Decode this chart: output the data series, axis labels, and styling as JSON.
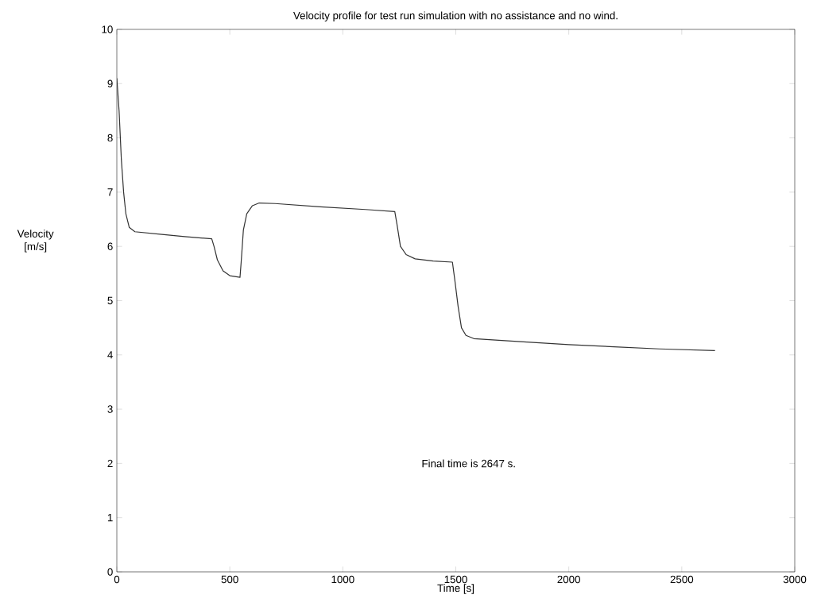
{
  "chart_data": {
    "type": "line",
    "title": "Velocity profile for test run simulation with no assistance and no wind.",
    "xlabel": "Time [s]",
    "ylabel": "Velocity [m/s]",
    "annotations": [
      "Final time is 2647 s."
    ],
    "series": [
      {
        "color": "#333333",
        "x": [
          0,
          10,
          20,
          30,
          40,
          55,
          80,
          200,
          300,
          420,
          430,
          445,
          470,
          500,
          545,
          550,
          560,
          575,
          600,
          630,
          700,
          900,
          1100,
          1230,
          1240,
          1255,
          1280,
          1320,
          1400,
          1485,
          1495,
          1510,
          1525,
          1545,
          1580,
          1800,
          2000,
          2200,
          2400,
          2647
        ],
        "values": [
          9.1,
          8.5,
          7.6,
          7.0,
          6.6,
          6.35,
          6.27,
          6.22,
          6.18,
          6.14,
          6.0,
          5.75,
          5.55,
          5.46,
          5.43,
          5.7,
          6.3,
          6.6,
          6.75,
          6.8,
          6.79,
          6.73,
          6.68,
          6.64,
          6.4,
          6.0,
          5.85,
          5.77,
          5.73,
          5.71,
          5.4,
          4.9,
          4.5,
          4.36,
          4.3,
          4.24,
          4.19,
          4.15,
          4.11,
          4.08
        ]
      }
    ],
    "xlim": [
      0,
      3000
    ],
    "ylim": [
      0,
      10
    ],
    "xticks": [
      0,
      500,
      1000,
      1500,
      2000,
      2500,
      3000
    ],
    "yticks": [
      0,
      1,
      2,
      3,
      4,
      5,
      6,
      7,
      8,
      9,
      10
    ],
    "grid": false,
    "marker": "none",
    "line_style": "solid"
  }
}
